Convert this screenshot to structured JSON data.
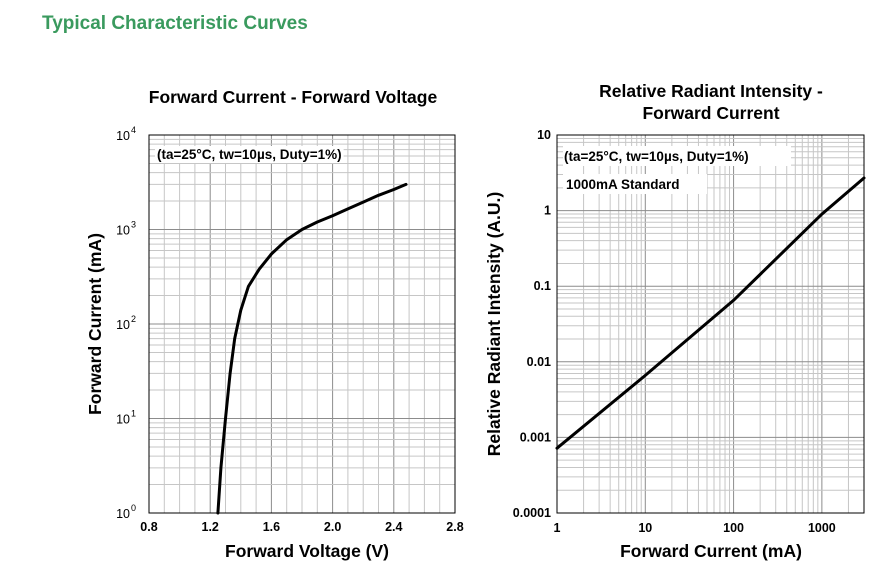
{
  "page": {
    "title": "Typical Characteristic Curves",
    "title_color": "#3a9a5e"
  },
  "chart_data": [
    {
      "type": "line",
      "title": "Forward Current - Forward Voltage",
      "annotation": "(ta=25°C, tw=10µs, Duty=1%)",
      "xlabel": "Forward Voltage (V)",
      "ylabel": "Forward Current (mA)",
      "x_scale": "linear",
      "y_scale": "log",
      "xlim": [
        0.8,
        2.8
      ],
      "ylim": [
        1,
        10000
      ],
      "x_ticks": [
        0.8,
        1.2,
        1.6,
        2.0,
        2.4,
        2.8
      ],
      "x_tick_labels": [
        "0.8",
        "1.2",
        "1.6",
        "2.0",
        "2.4",
        "2.8"
      ],
      "y_ticks": [
        1,
        10,
        100,
        1000,
        10000
      ],
      "y_tick_labels": [
        {
          "base": "10",
          "exp": "0"
        },
        {
          "base": "10",
          "exp": "1"
        },
        {
          "base": "10",
          "exp": "2"
        },
        {
          "base": "10",
          "exp": "3"
        },
        {
          "base": "10",
          "exp": "4"
        }
      ],
      "grid": true,
      "series": [
        {
          "x": [
            1.25,
            1.27,
            1.3,
            1.33,
            1.36,
            1.4,
            1.45,
            1.52,
            1.6,
            1.7,
            1.8,
            1.9,
            2.0,
            2.1,
            2.2,
            2.3,
            2.4,
            2.48
          ],
          "y": [
            1,
            3,
            10,
            30,
            70,
            140,
            250,
            380,
            550,
            780,
            1000,
            1200,
            1400,
            1650,
            1950,
            2300,
            2650,
            3000
          ]
        }
      ]
    },
    {
      "type": "line",
      "title_lines": [
        "Relative Radiant Intensity -",
        "Forward Current"
      ],
      "annotation": "(ta=25°C, tw=10µs, Duty=1%)",
      "annotation2": "1000mA Standard",
      "xlabel": "Forward Current (mA)",
      "ylabel": "Relative Radiant Intensity (A.U.)",
      "x_scale": "log",
      "y_scale": "log",
      "xlim": [
        1,
        3000
      ],
      "ylim": [
        0.0001,
        10
      ],
      "x_ticks": [
        1,
        10,
        100,
        1000
      ],
      "x_tick_labels": [
        "1",
        "10",
        "100",
        "1000"
      ],
      "y_ticks": [
        0.0001,
        0.001,
        0.01,
        0.1,
        1,
        10
      ],
      "y_tick_labels": [
        "0.0001",
        "0.001",
        "0.01",
        "0.1",
        "1",
        "10"
      ],
      "grid": true,
      "series": [
        {
          "x": [
            1,
            10,
            100,
            1000,
            3000
          ],
          "y": [
            0.00072,
            0.0066,
            0.065,
            0.9,
            2.7
          ]
        }
      ]
    }
  ]
}
